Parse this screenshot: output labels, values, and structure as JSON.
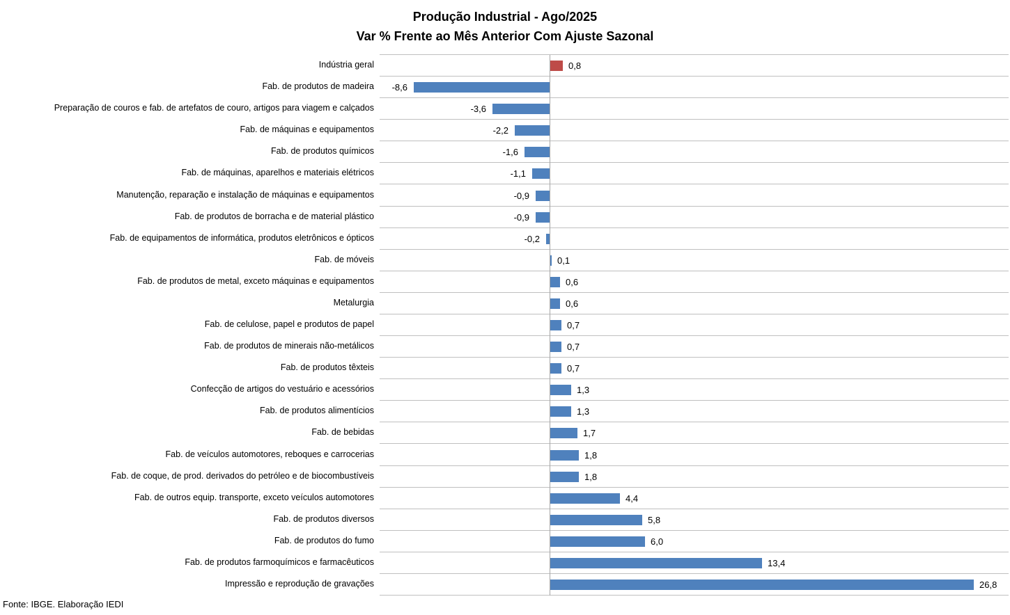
{
  "title": {
    "line1": "Produção Industrial - Ago/2025",
    "line2": "Var % Frente ao Mês Anterior Com Ajuste Sazonal"
  },
  "footer": "Fonte: IBGE. Elaboração IEDI",
  "colors": {
    "bar_default": "#4f81bd",
    "bar_highlight": "#be4b48",
    "gridline": "#bfbfbf",
    "axis_line": "#a6a6a6",
    "text": "#000000"
  },
  "chart_data": {
    "type": "bar",
    "orientation": "horizontal",
    "title": "Produção Industrial - Ago/2025",
    "subtitle": "Var % Frente ao Mês Anterior Com Ajuste Sazonal",
    "xlabel": "",
    "ylabel": "",
    "xlim": [
      -10.8,
      29.1
    ],
    "grid": "horizontal row separators, no x-axis tick labels",
    "legend": "none",
    "value_format": "decimal comma, 1 decimal place",
    "highlighted_category": "Indústria geral",
    "categories": [
      "Indústria geral",
      "Fab. de produtos de madeira",
      "Preparação de couros e fab. de artefatos de couro, artigos para viagem e calçados",
      "Fab. de máquinas e equipamentos",
      "Fab. de produtos químicos",
      "Fab. de máquinas, aparelhos e materiais elétricos",
      "Manutenção, reparação e instalação de máquinas e equipamentos",
      "Fab. de produtos de borracha e de material plástico",
      "Fab. de equipamentos de informática, produtos eletrônicos e ópticos",
      "Fab. de móveis",
      "Fab. de produtos de metal, exceto máquinas e equipamentos",
      "Metalurgia",
      "Fab. de celulose, papel e produtos de papel",
      "Fab. de produtos de minerais não-metálicos",
      "Fab. de produtos têxteis",
      "Confecção de artigos do vestuário e acessórios",
      "Fab. de produtos alimentícios",
      "Fab. de bebidas",
      "Fab. de veículos automotores, reboques e carrocerias",
      "Fab. de coque, de prod. derivados do petróleo e de biocombustíveis",
      "Fab. de outros equip. transporte, exceto veículos automotores",
      "Fab. de produtos diversos",
      "Fab. de produtos do fumo",
      "Fab. de produtos farmoquímicos e farmacêuticos",
      "Impressão e reprodução de gravações"
    ],
    "values": [
      0.8,
      -8.6,
      -3.6,
      -2.2,
      -1.6,
      -1.1,
      -0.9,
      -0.9,
      -0.2,
      0.1,
      0.6,
      0.6,
      0.7,
      0.7,
      0.7,
      1.3,
      1.3,
      1.7,
      1.8,
      1.8,
      4.4,
      5.8,
      6.0,
      13.4,
      26.8
    ],
    "value_labels": [
      "0,8",
      "-8,6",
      "-3,6",
      "-2,2",
      "-1,6",
      "-1,1",
      "-0,9",
      "-0,9",
      "-0,2",
      "0,1",
      "0,6",
      "0,6",
      "0,7",
      "0,7",
      "0,7",
      "1,3",
      "1,3",
      "1,7",
      "1,8",
      "1,8",
      "4,4",
      "5,8",
      "6,0",
      "13,4",
      "26,8"
    ]
  }
}
